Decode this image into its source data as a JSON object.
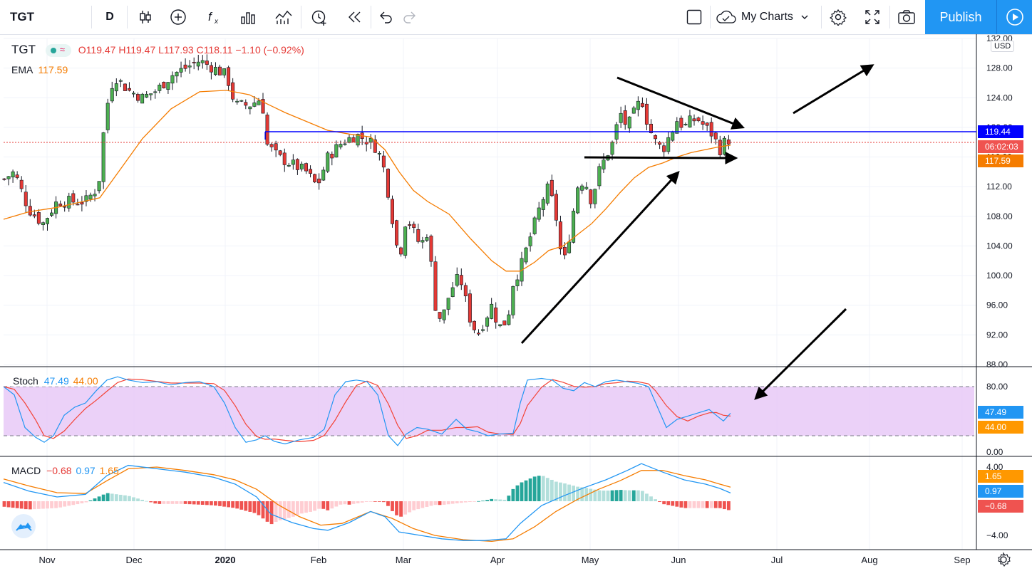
{
  "toolbar": {
    "symbol": "TGT",
    "interval": "D",
    "my_charts": "My Charts",
    "publish": "Publish"
  },
  "legend": {
    "symbol": "TGT",
    "ohlc": "O119.47 H119.47 L117.93 C118.11 −1.10 (−0.92%)",
    "ema_label": "EMA",
    "ema_value": "117.59",
    "stoch_label": "Stoch",
    "stoch_k": "47.49",
    "stoch_d": "44.00",
    "macd_label": "MACD",
    "macd_hist": "−0.68",
    "macd_macd": "0.97",
    "macd_signal": "1.65"
  },
  "price_axis": {
    "currency": "USD",
    "ticks": [
      "132.00",
      "128.00",
      "124.00",
      "120.00",
      "116.00",
      "112.00",
      "108.00",
      "104.00",
      "100.00",
      "96.00",
      "92.00",
      "88.00"
    ],
    "badges": {
      "horizontal_line": "119.44",
      "countdown": "06:02:03",
      "ema": "117.59"
    }
  },
  "stoch_axis": {
    "ticks": [
      "80.00",
      "0.00"
    ],
    "badges": {
      "k": "47.49",
      "d": "44.00"
    }
  },
  "macd_axis": {
    "ticks": [
      "4.00",
      "−4.00"
    ],
    "badges": {
      "signal": "1.65",
      "macd": "0.97",
      "hist": "−0.68"
    }
  },
  "time_axis": {
    "labels": [
      "Nov",
      "Dec",
      "2020",
      "Feb",
      "Mar",
      "Apr",
      "May",
      "Jun",
      "Jul",
      "Aug",
      "Sep"
    ]
  },
  "colors": {
    "up": "#4caf50",
    "down": "#e53935",
    "ema": "#f57c00",
    "hline": "#0000ff",
    "stoch_k": "#2196f3",
    "stoch_d": "#f44336",
    "stoch_band": "#e1bee7",
    "accent": "#2196f3"
  },
  "chart_data": [
    {
      "type": "candlestick",
      "title": "TGT",
      "ylim": [
        88,
        132
      ],
      "series": [
        {
          "name": "EMA",
          "values_approx": [
            107.6,
            108.3,
            108.7,
            109.6,
            118,
            121.5,
            124,
            125,
            124,
            119,
            117.4,
            118.5,
            118.7,
            116,
            110,
            104,
            101,
            100.3,
            101.5,
            104.5,
            106,
            110,
            113.5,
            115,
            117.59
          ]
        },
        {
          "name": "Candles (close, approx)",
          "values_approx": [
            112,
            110,
            108,
            110,
            124,
            127,
            125,
            129,
            127,
            124,
            117,
            115,
            118,
            118,
            112,
            104,
            96,
            92,
            96,
            100,
            108,
            114,
            120,
            122,
            118.11
          ]
        }
      ],
      "horizontal_line": 119.44
    },
    {
      "type": "line",
      "title": "Stoch",
      "ylim": [
        0,
        100
      ],
      "bands": [
        20,
        80
      ],
      "series": [
        {
          "name": "%K",
          "last": 47.49
        },
        {
          "name": "%D",
          "last": 44.0
        }
      ]
    },
    {
      "type": "bar",
      "title": "MACD",
      "ylim": [
        -5,
        5
      ],
      "series": [
        {
          "name": "MACD",
          "last": 0.97
        },
        {
          "name": "Signal",
          "last": 1.65
        },
        {
          "name": "Histogram",
          "last": -0.68
        }
      ]
    }
  ]
}
